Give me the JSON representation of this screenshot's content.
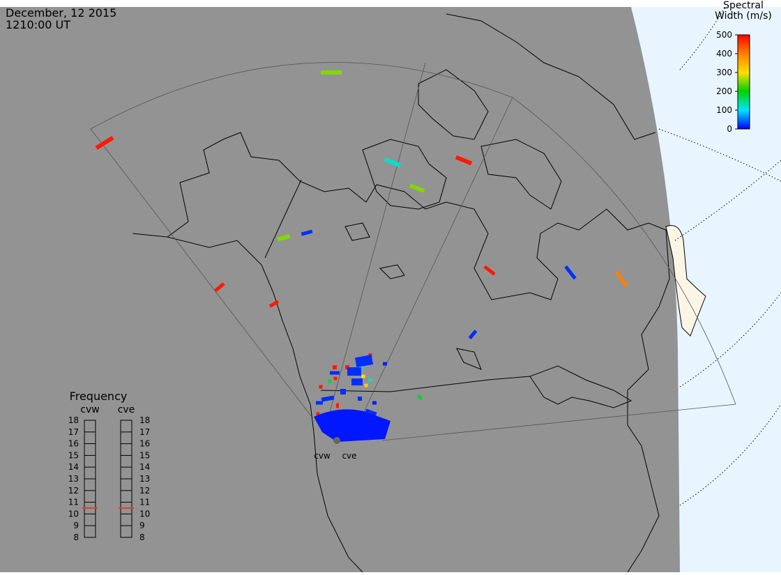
{
  "header": {
    "date": "December, 12 2015",
    "time": "1210:00 UT"
  },
  "colorbar": {
    "title": [
      "Spectral",
      "Width (m/s)"
    ],
    "lim": [
      0,
      500
    ],
    "ticks": [
      0,
      100,
      200,
      300,
      400,
      500
    ]
  },
  "frequency": {
    "title": "Frequency",
    "lim": [
      8,
      18
    ],
    "ticks": [
      8,
      9,
      10,
      11,
      12,
      13,
      14,
      15,
      16,
      17,
      18
    ],
    "radars": [
      {
        "name": "cvw",
        "value": 10.5
      },
      {
        "name": "cve",
        "value": 10.5
      }
    ]
  },
  "stations": [
    "cvw",
    "cve"
  ],
  "spectral_width": [
    480,
    250,
    120,
    250,
    480,
    250,
    20,
    480,
    480,
    480,
    20,
    400,
    20,
    180,
    480,
    480,
    480,
    480,
    480,
    480,
    480,
    120,
    120,
    180,
    300,
    320,
    180,
    20,
    20,
    20,
    20,
    20,
    20,
    20,
    20,
    20,
    20,
    20,
    15,
    15,
    10
  ]
}
